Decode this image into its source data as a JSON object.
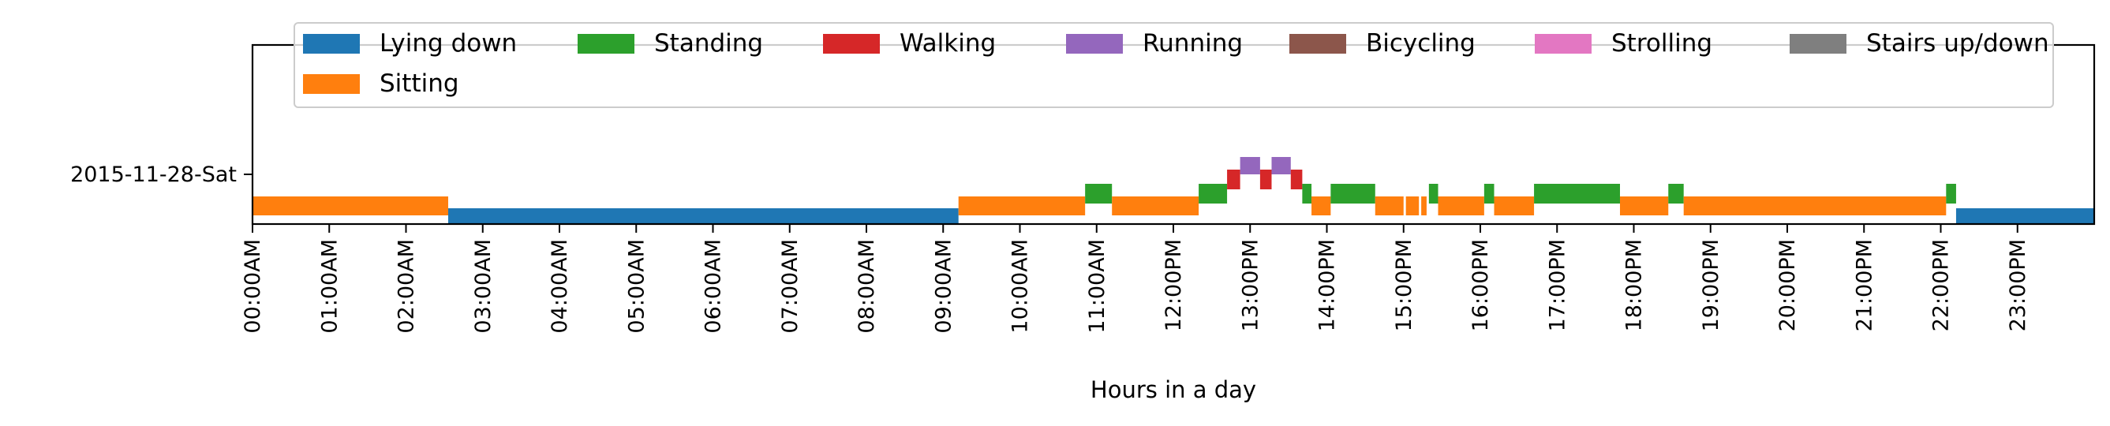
{
  "chart_data": {
    "type": "timeline",
    "title": "",
    "xlabel": "Hours in a day",
    "ylabel": "",
    "xlim": [
      0,
      24
    ],
    "day_label": "2015-11-28-Sat",
    "x_ticks": [
      "00:00AM",
      "01:00AM",
      "02:00AM",
      "03:00AM",
      "04:00AM",
      "05:00AM",
      "06:00AM",
      "07:00AM",
      "08:00AM",
      "09:00AM",
      "10:00AM",
      "11:00AM",
      "12:00PM",
      "13:00PM",
      "14:00PM",
      "15:00PM",
      "16:00PM",
      "17:00PM",
      "18:00PM",
      "19:00PM",
      "20:00PM",
      "21:00PM",
      "22:00PM",
      "23:00PM"
    ],
    "legend_position": "top",
    "categories": [
      {
        "name": "Lying down",
        "color": "#1f77b4"
      },
      {
        "name": "Sitting",
        "color": "#ff7f0e"
      },
      {
        "name": "Standing",
        "color": "#2ca02c"
      },
      {
        "name": "Walking",
        "color": "#d62728"
      },
      {
        "name": "Running",
        "color": "#9467bd"
      },
      {
        "name": "Bicycling",
        "color": "#8c564b"
      },
      {
        "name": "Strolling",
        "color": "#e377c2"
      },
      {
        "name": "Stairs up/down",
        "color": "#7f7f7f"
      }
    ],
    "legend_order": [
      "Lying down",
      "Standing",
      "Walking",
      "Running",
      "Bicycling",
      "Strolling",
      "Stairs up/down",
      "Sitting"
    ],
    "segments": [
      {
        "activity": "Sitting",
        "start": 0.0,
        "end": 2.55
      },
      {
        "activity": "Lying down",
        "start": 2.55,
        "end": 9.2
      },
      {
        "activity": "Sitting",
        "start": 9.2,
        "end": 10.85
      },
      {
        "activity": "Standing",
        "start": 10.85,
        "end": 11.2
      },
      {
        "activity": "Sitting",
        "start": 11.2,
        "end": 12.33
      },
      {
        "activity": "Standing",
        "start": 12.33,
        "end": 12.7
      },
      {
        "activity": "Walking",
        "start": 12.7,
        "end": 12.87
      },
      {
        "activity": "Running",
        "start": 12.87,
        "end": 13.13
      },
      {
        "activity": "Walking",
        "start": 13.13,
        "end": 13.28
      },
      {
        "activity": "Running",
        "start": 13.28,
        "end": 13.53
      },
      {
        "activity": "Walking",
        "start": 13.53,
        "end": 13.68
      },
      {
        "activity": "Standing",
        "start": 13.68,
        "end": 13.8
      },
      {
        "activity": "Sitting",
        "start": 13.8,
        "end": 14.05
      },
      {
        "activity": "Standing",
        "start": 14.05,
        "end": 14.63
      },
      {
        "activity": "Sitting",
        "start": 14.63,
        "end": 15.0
      },
      {
        "activity": "Sitting",
        "start": 15.03,
        "end": 15.2
      },
      {
        "activity": "Sitting",
        "start": 15.23,
        "end": 15.3
      },
      {
        "activity": "Standing",
        "start": 15.33,
        "end": 15.45
      },
      {
        "activity": "Sitting",
        "start": 15.45,
        "end": 16.05
      },
      {
        "activity": "Standing",
        "start": 16.05,
        "end": 16.18
      },
      {
        "activity": "Sitting",
        "start": 16.18,
        "end": 16.7
      },
      {
        "activity": "Standing",
        "start": 16.7,
        "end": 17.82
      },
      {
        "activity": "Sitting",
        "start": 17.82,
        "end": 18.45
      },
      {
        "activity": "Standing",
        "start": 18.45,
        "end": 18.65
      },
      {
        "activity": "Sitting",
        "start": 18.65,
        "end": 22.07
      },
      {
        "activity": "Standing",
        "start": 22.07,
        "end": 22.2
      },
      {
        "activity": "Lying down",
        "start": 22.2,
        "end": 24.0
      }
    ]
  }
}
